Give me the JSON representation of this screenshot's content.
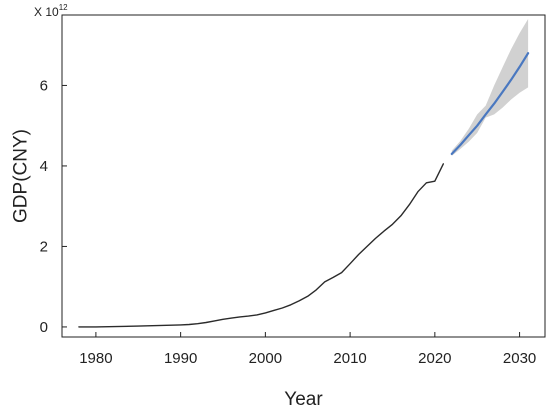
{
  "chart_data": {
    "type": "line",
    "xlabel": "Year",
    "ylabel": "GDP(CNY)",
    "y_scale_note": "X 10",
    "y_scale_exponent": "12",
    "xlim": [
      1976,
      2033
    ],
    "ylim": [
      -0.25,
      7.75
    ],
    "x_ticks": [
      1980,
      1990,
      2000,
      2010,
      2020,
      2030
    ],
    "y_ticks": [
      0,
      2,
      4,
      6
    ],
    "grid": false,
    "colors": {
      "historical": "#2b2b2b",
      "forecast": "#4a78c0",
      "confidence_band": "#c9c9c9",
      "axes": "#222222"
    },
    "series": [
      {
        "kind": "historical",
        "x": [
          1978,
          1980,
          1985,
          1990,
          1991,
          1992,
          1993,
          1994,
          1995,
          1996,
          1997,
          1998,
          1999,
          2000,
          2001,
          2002,
          2003,
          2004,
          2005,
          2006,
          2007,
          2008,
          2009,
          2010,
          2011,
          2012,
          2013,
          2014,
          2015,
          2016,
          2017,
          2018,
          2019,
          2020,
          2021
        ],
        "y": [
          0.0,
          0.0,
          0.02,
          0.05,
          0.06,
          0.08,
          0.11,
          0.15,
          0.19,
          0.22,
          0.25,
          0.27,
          0.3,
          0.35,
          0.41,
          0.47,
          0.55,
          0.65,
          0.76,
          0.92,
          1.12,
          1.23,
          1.35,
          1.57,
          1.8,
          2.0,
          2.2,
          2.38,
          2.55,
          2.76,
          3.04,
          3.36,
          3.58,
          3.62,
          4.05
        ]
      },
      {
        "kind": "forecast",
        "x": [
          2022,
          2023,
          2024,
          2025,
          2026,
          2027,
          2028,
          2029,
          2030,
          2031
        ],
        "y": [
          4.3,
          4.52,
          4.76,
          5.0,
          5.28,
          5.55,
          5.84,
          6.14,
          6.46,
          6.8
        ],
        "lower": [
          4.25,
          4.42,
          4.6,
          4.82,
          5.2,
          5.28,
          5.45,
          5.65,
          5.82,
          5.95
        ],
        "upper": [
          4.38,
          4.62,
          4.92,
          5.28,
          5.5,
          6.0,
          6.45,
          6.9,
          7.3,
          7.65
        ]
      }
    ]
  }
}
